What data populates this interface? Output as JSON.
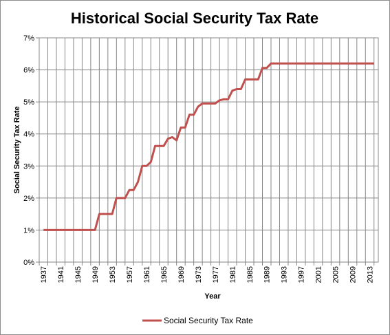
{
  "chart_data": {
    "type": "line",
    "title": "Historical Social Security Tax Rate",
    "xlabel": "Year",
    "ylabel": "Social Security Tax Rate",
    "ylim": [
      0,
      7
    ],
    "y_ticks": [
      "0%",
      "1%",
      "2%",
      "3%",
      "4%",
      "5%",
      "6%",
      "7%"
    ],
    "x_ticks": [
      "1937",
      "1941",
      "1945",
      "1949",
      "1953",
      "1957",
      "1961",
      "1965",
      "1969",
      "1973",
      "1977",
      "1981",
      "1985",
      "1989",
      "1993",
      "1997",
      "2001",
      "2005",
      "2009",
      "2013"
    ],
    "grid": true,
    "legend_position": "bottom",
    "line_color": "#c0504d",
    "series": [
      {
        "name": "Social Security Tax Rate",
        "x": [
          1937,
          1938,
          1939,
          1940,
          1941,
          1942,
          1943,
          1944,
          1945,
          1946,
          1947,
          1948,
          1949,
          1950,
          1951,
          1952,
          1953,
          1954,
          1955,
          1956,
          1957,
          1958,
          1959,
          1960,
          1961,
          1962,
          1963,
          1964,
          1965,
          1966,
          1967,
          1968,
          1969,
          1970,
          1971,
          1972,
          1973,
          1974,
          1975,
          1976,
          1977,
          1978,
          1979,
          1980,
          1981,
          1982,
          1983,
          1984,
          1985,
          1986,
          1987,
          1988,
          1989,
          1990,
          1991,
          1992,
          1993,
          1994,
          1995,
          1996,
          1997,
          1998,
          1999,
          2000,
          2001,
          2002,
          2003,
          2004,
          2005,
          2006,
          2007,
          2008,
          2009,
          2010,
          2011,
          2012,
          2013,
          2014
        ],
        "values": [
          1.0,
          1.0,
          1.0,
          1.0,
          1.0,
          1.0,
          1.0,
          1.0,
          1.0,
          1.0,
          1.0,
          1.0,
          1.0,
          1.5,
          1.5,
          1.5,
          1.5,
          2.0,
          2.0,
          2.0,
          2.25,
          2.25,
          2.5,
          3.0,
          3.0,
          3.125,
          3.625,
          3.625,
          3.625,
          3.85,
          3.9,
          3.8,
          4.2,
          4.2,
          4.6,
          4.6,
          4.85,
          4.95,
          4.95,
          4.95,
          4.95,
          5.05,
          5.08,
          5.08,
          5.35,
          5.4,
          5.4,
          5.7,
          5.7,
          5.7,
          5.7,
          6.06,
          6.06,
          6.2,
          6.2,
          6.2,
          6.2,
          6.2,
          6.2,
          6.2,
          6.2,
          6.2,
          6.2,
          6.2,
          6.2,
          6.2,
          6.2,
          6.2,
          6.2,
          6.2,
          6.2,
          6.2,
          6.2,
          6.2,
          6.2,
          6.2,
          6.2,
          6.2
        ]
      }
    ]
  }
}
